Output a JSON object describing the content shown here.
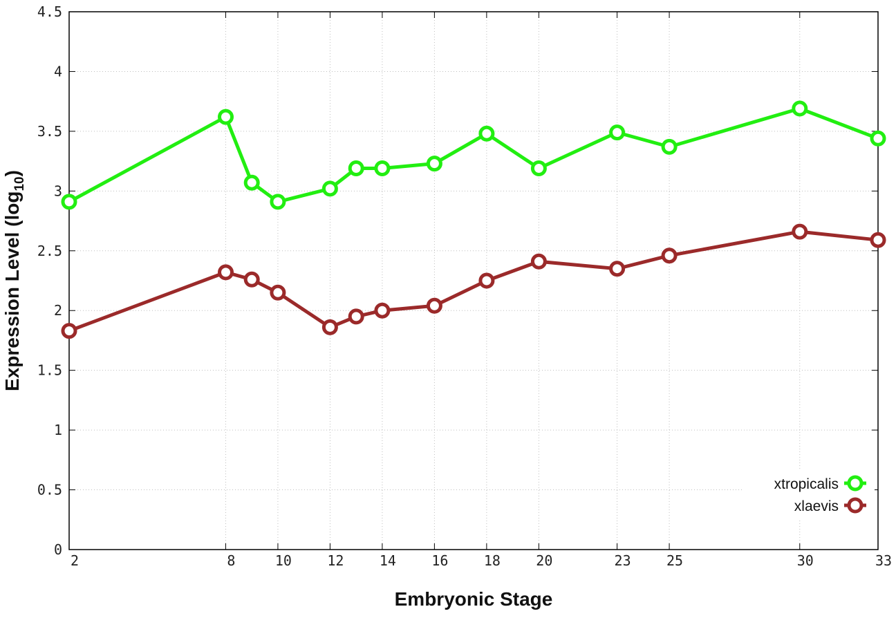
{
  "chart_data": {
    "type": "line",
    "title": "",
    "xlabel": "Embryonic Stage",
    "ylabel_main": "Expression Level (log",
    "ylabel_sub": "10",
    "ylabel_end": ")",
    "x": [
      2,
      8,
      9,
      10,
      12,
      13,
      14,
      16,
      18,
      20,
      23,
      25,
      30,
      33
    ],
    "xlim": [
      2,
      33
    ],
    "x_ticks": [
      2,
      8,
      10,
      12,
      14,
      16,
      18,
      20,
      23,
      25,
      30,
      33
    ],
    "x_tick_labels": [
      "2",
      "8",
      "10",
      "12",
      "14",
      "16",
      "18",
      "20",
      "23",
      "25",
      "30",
      "33"
    ],
    "ylim": [
      0,
      4.5
    ],
    "y_ticks": [
      0,
      0.5,
      1,
      1.5,
      2,
      2.5,
      3,
      3.5,
      4,
      4.5
    ],
    "y_tick_labels": [
      "0",
      "0.5",
      "1",
      "1.5",
      "2",
      "2.5",
      "3",
      "3.5",
      "4",
      "4.5"
    ],
    "grid": true,
    "legend_position": "bottom-right",
    "series": [
      {
        "name": "xtropicalis",
        "color": "#22ee11",
        "values": [
          2.91,
          3.62,
          3.07,
          2.91,
          3.02,
          3.19,
          3.19,
          3.23,
          3.48,
          3.19,
          3.49,
          3.37,
          3.69,
          3.44
        ]
      },
      {
        "name": "xlaevis",
        "color": "#9b2a2a",
        "values": [
          1.83,
          2.32,
          2.26,
          2.15,
          1.86,
          1.95,
          2.0,
          2.04,
          2.25,
          2.41,
          2.35,
          2.46,
          2.66,
          2.59
        ]
      }
    ]
  }
}
